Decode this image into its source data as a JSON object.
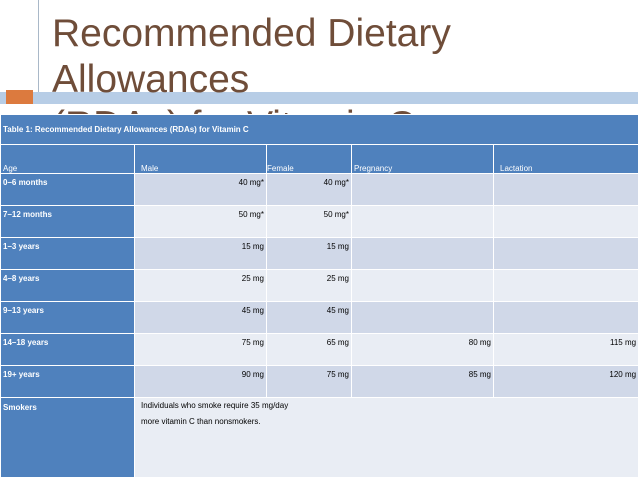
{
  "slide": {
    "title_line1": "Recommended Dietary Allowances",
    "title_line2": "(RDAs) for Vitamin C"
  },
  "table": {
    "caption": "Table 1: Recommended Dietary Allowances (RDAs) for Vitamin C",
    "headers": [
      "Age",
      "Male",
      "Female",
      "Pregnancy",
      "Lactation"
    ],
    "rows": [
      {
        "age": "0–6 months",
        "male": "40 mg*",
        "female": "40 mg*",
        "pregnancy": "",
        "lactation": ""
      },
      {
        "age": "7–12 months",
        "male": "50 mg*",
        "female": "50 mg*",
        "pregnancy": "",
        "lactation": ""
      },
      {
        "age": "1–3 years",
        "male": "15 mg",
        "female": "15 mg",
        "pregnancy": "",
        "lactation": ""
      },
      {
        "age": "4–8 years",
        "male": "25 mg",
        "female": "25 mg",
        "pregnancy": "",
        "lactation": ""
      },
      {
        "age": "9–13 years",
        "male": "45 mg",
        "female": "45 mg",
        "pregnancy": "",
        "lactation": ""
      },
      {
        "age": "14–18 years",
        "male": "75 mg",
        "female": "65 mg",
        "pregnancy": "80 mg",
        "lactation": "115 mg"
      },
      {
        "age": "19+ years",
        "male": "90 mg",
        "female": "75 mg",
        "pregnancy": "85 mg",
        "lactation": "120 mg"
      }
    ],
    "smokers": {
      "age": "Smokers",
      "note_line1": "Individuals who smoke require 35 mg/day",
      "note_line2": "more vitamin C than nonsmokers."
    }
  },
  "colors": {
    "title": "#6f4d39",
    "header_blue": "#4f81bd",
    "row_light": "#e9edf4",
    "row_mid": "#d0d8e8",
    "accent_orange": "#dc7a3e"
  }
}
